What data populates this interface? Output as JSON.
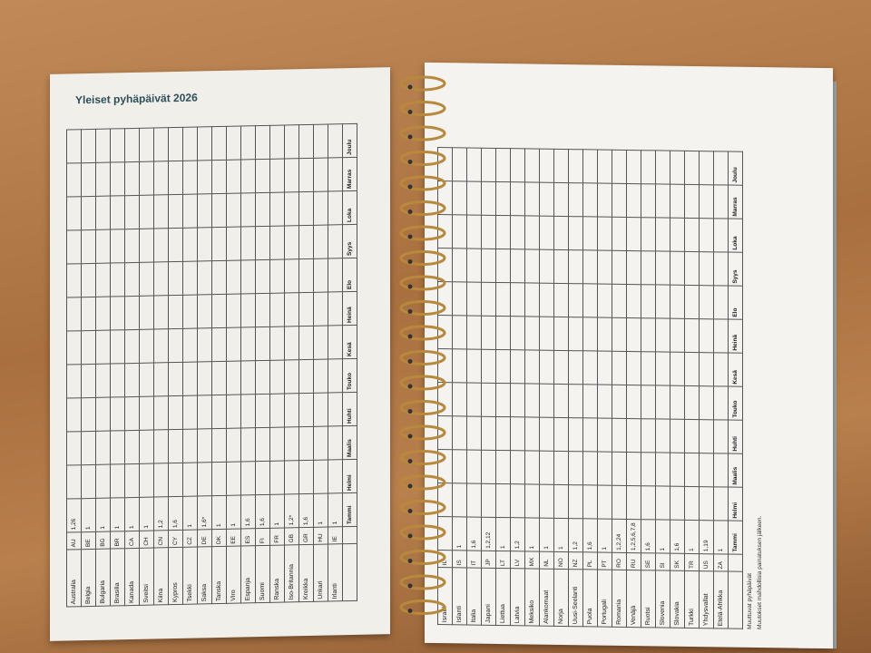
{
  "title": "Yleiset pyhäpäivät 2026",
  "months": [
    "Tammi",
    "Helmi",
    "Maalis",
    "Huhti",
    "Touko",
    "Kesä",
    "Heinä",
    "Elo",
    "Syys",
    "Loka",
    "Marras",
    "Joulu"
  ],
  "left_table": {
    "rows": [
      {
        "country": "Australia",
        "code": "AU",
        "jan": "1,26"
      },
      {
        "country": "Belgia",
        "code": "BE",
        "jan": "1"
      },
      {
        "country": "Bulgaria",
        "code": "BG",
        "jan": "1"
      },
      {
        "country": "Brasilia",
        "code": "BR",
        "jan": "1"
      },
      {
        "country": "Kanada",
        "code": "CA",
        "jan": "1"
      },
      {
        "country": "Sveitsi",
        "code": "CH",
        "jan": "1"
      },
      {
        "country": "Kiina",
        "code": "CN",
        "jan": "1,2"
      },
      {
        "country": "Kypros",
        "code": "CY",
        "jan": "1,6"
      },
      {
        "country": "Tsekki",
        "code": "CZ",
        "jan": "1"
      },
      {
        "country": "Saksa",
        "code": "DE",
        "jan": "1,6*"
      },
      {
        "country": "Tanska",
        "code": "DK",
        "jan": "1"
      },
      {
        "country": "Viro",
        "code": "EE",
        "jan": "1"
      },
      {
        "country": "Espanja",
        "code": "ES",
        "jan": "1,6"
      },
      {
        "country": "Suomi",
        "code": "FI",
        "jan": "1,6"
      },
      {
        "country": "Ranska",
        "code": "FR",
        "jan": "1"
      },
      {
        "country": "Iso-Britannia",
        "code": "GB",
        "jan": "1,2*"
      },
      {
        "country": "Kreikka",
        "code": "GR",
        "jan": "1,6"
      },
      {
        "country": "Unkari",
        "code": "HU",
        "jan": "1"
      },
      {
        "country": "Irlanti",
        "code": "IE",
        "jan": "1"
      }
    ]
  },
  "right_table": {
    "rows": [
      {
        "country": "Israel",
        "code": "IL"
      },
      {
        "country": "Islanti",
        "code": "IS",
        "jan": "1"
      },
      {
        "country": "Italia",
        "code": "IT",
        "jan": "1,6"
      },
      {
        "country": "Japani",
        "code": "JP",
        "jan": "1,2,12"
      },
      {
        "country": "Liettua",
        "code": "LT",
        "jan": "1"
      },
      {
        "country": "Latvia",
        "code": "LV",
        "jan": "1,2"
      },
      {
        "country": "Meksiko",
        "code": "MX",
        "jan": "1"
      },
      {
        "country": "Alankomaat",
        "code": "NL",
        "jan": "1"
      },
      {
        "country": "Norja",
        "code": "NO",
        "jan": "1"
      },
      {
        "country": "Uusi-Seelanti",
        "code": "NZ",
        "jan": "1,2"
      },
      {
        "country": "Puola",
        "code": "PL",
        "jan": "1,6"
      },
      {
        "country": "Portugali",
        "code": "PT",
        "jan": "1"
      },
      {
        "country": "Romania",
        "code": "RO",
        "jan": "1,2,24"
      },
      {
        "country": "Venäjä",
        "code": "RU",
        "jan": "1,2,5,6,7,8"
      },
      {
        "country": "Ruotsi",
        "code": "SE",
        "jan": "1,6"
      },
      {
        "country": "Slovenia",
        "code": "SI",
        "jan": "1"
      },
      {
        "country": "Slovakia",
        "code": "SK",
        "jan": "1,6"
      },
      {
        "country": "Turkki",
        "code": "TR",
        "jan": "1"
      },
      {
        "country": "Yhdysvallat",
        "code": "US",
        "jan": "1,19"
      },
      {
        "country": "Etelä-Afrikka",
        "code": "ZA",
        "jan": "1"
      }
    ]
  },
  "note": [
    "Muuttuvat pyhäpäivät",
    "Muutokset mahdollisia painatuksen jälkeen."
  ]
}
